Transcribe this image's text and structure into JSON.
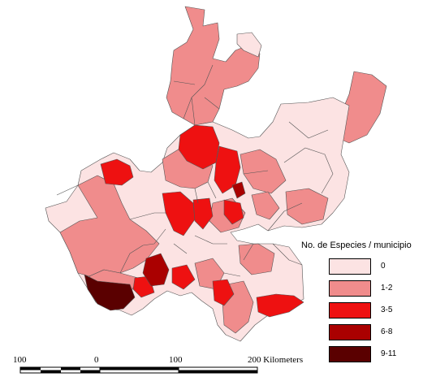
{
  "legend": {
    "title": "No. de Especies / municipio",
    "classes": [
      {
        "label": "0",
        "color": "#fce3e3"
      },
      {
        "label": "1-2",
        "color": "#f08c8c"
      },
      {
        "label": "3-5",
        "color": "#ee1111"
      },
      {
        "label": "6-8",
        "color": "#aa0000"
      },
      {
        "label": "9-11",
        "color": "#5a0000"
      }
    ]
  },
  "scale_bar": {
    "labels": [
      "100",
      "0",
      "100",
      "200"
    ],
    "unit": "Kilometers"
  }
}
